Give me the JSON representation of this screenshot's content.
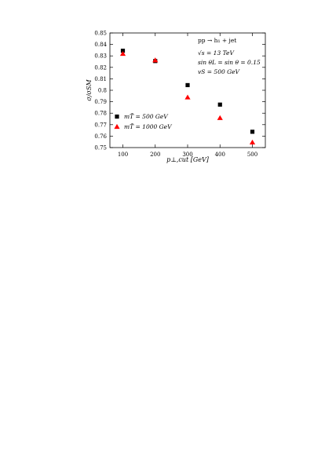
{
  "chart_data": {
    "type": "scatter",
    "xlabel": "p⊥,cut [GeV]",
    "ylabel": "σ/σSM",
    "xlim": [
      60,
      540
    ],
    "ylim": [
      0.75,
      0.85
    ],
    "xticks": [
      100,
      200,
      300,
      400,
      500
    ],
    "yticks": [
      0.75,
      0.76,
      0.77,
      0.78,
      0.79,
      0.8,
      0.81,
      0.82,
      0.83,
      0.84,
      0.85
    ],
    "xtick_labels": [
      "100",
      "200",
      "300",
      "400",
      "500"
    ],
    "ytick_labels": [
      "0.75",
      "0.76",
      "0.77",
      "0.78",
      "0.79",
      "0.8",
      "0.81",
      "0.82",
      "0.83",
      "0.84",
      "0.85"
    ],
    "annotations": [
      "pp → h₁ + jet",
      "√s = 13 TeV",
      "sin θL = sin θ = 0.15",
      "vS = 500 GeV"
    ],
    "legend_position": "bottom-left",
    "grid": false,
    "series": [
      {
        "name": "mT̃ = 500 GeV",
        "marker": "square",
        "color": "#000000",
        "x": [
          100,
          200,
          300,
          400,
          500
        ],
        "y": [
          0.8345,
          0.8255,
          0.8045,
          0.7875,
          0.7638
        ]
      },
      {
        "name": "mT̃ = 1000 GeV",
        "marker": "triangle",
        "color": "#ff0000",
        "x": [
          100,
          200,
          300,
          400,
          500
        ],
        "y": [
          0.8318,
          0.8262,
          0.7938,
          0.7758,
          0.7545
        ]
      }
    ]
  }
}
